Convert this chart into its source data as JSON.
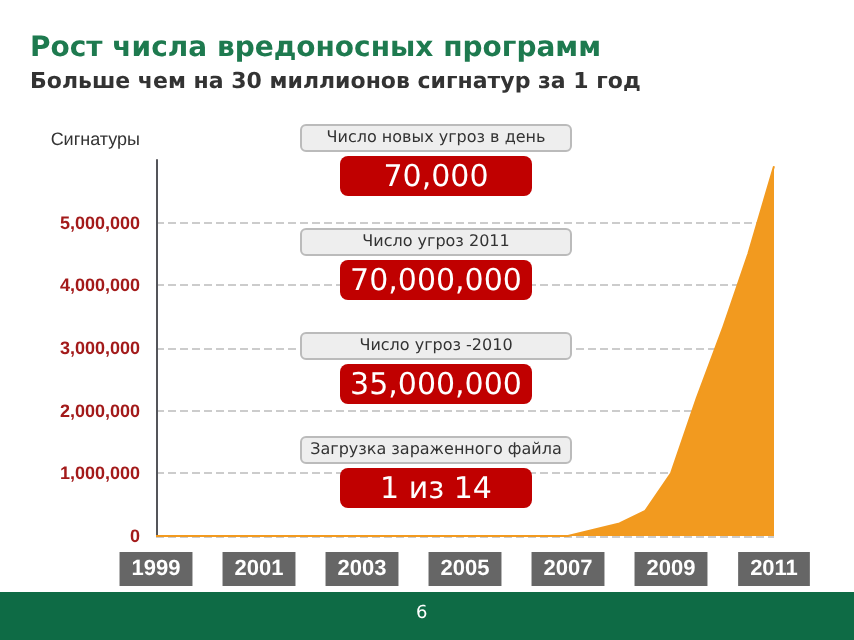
{
  "chart_data": {
    "type": "area",
    "title": "Рост числа вредоносных программ",
    "subtitle": "Больше чем на 30 миллионов сигнатур за 1 год",
    "ylabel": "Сигнатуры",
    "x": [
      1999,
      2001,
      2003,
      2005,
      2006,
      2007,
      2007.5,
      2008,
      2008.5,
      2009,
      2009.5,
      2010,
      2010.5,
      2011
    ],
    "series": [
      {
        "color": "#f29a1f",
        "values": [
          0,
          0,
          0,
          0,
          0,
          0,
          100000,
          200000,
          400000,
          1000000,
          2200000,
          3300000,
          4500000,
          5900000
        ]
      }
    ],
    "xlim": [
      1999,
      2011
    ],
    "xticks": [
      1999,
      2001,
      2003,
      2005,
      2007,
      2009,
      2011
    ],
    "ylim": [
      0,
      6000000
    ],
    "yticks": [
      0,
      {
        "value": 1000000,
        "label": "1,000,000"
      },
      {
        "value": 2000000,
        "label": "2,000,000"
      },
      {
        "value": 3000000,
        "label": "3,000,000"
      },
      {
        "value": 4000000,
        "label": "4,000,000"
      },
      {
        "value": 5000000,
        "label": "5,000,000"
      }
    ],
    "grid": "y",
    "marker": "none",
    "annotations": [
      "Число новых угроз в день",
      "70,000",
      "Число угроз 2011",
      "70,000,000",
      "Число угроз -2010",
      "35,000,000",
      "Загрузка зараженного файла",
      "1 из 14",
      "6"
    ]
  }
}
